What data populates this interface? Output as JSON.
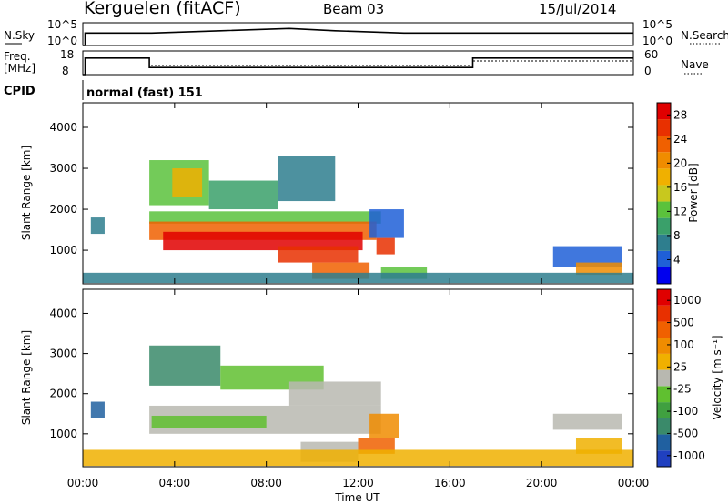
{
  "header": {
    "station": "Kerguelen (fitACF)",
    "beam": "Beam 03",
    "date": "15/Jul/2014"
  },
  "noise_panel": {
    "left_label": "N.Sky",
    "right_label": "N.Search",
    "tick_top": "10^5",
    "tick_bottom": "10^0"
  },
  "freq_panel": {
    "left_label_1": "Freq.",
    "left_label_2": "[MHz]",
    "right_label": "Nave",
    "left_ticks": [
      "18",
      "8"
    ],
    "right_ticks": [
      "60",
      "0"
    ]
  },
  "cpid_panel": {
    "label": "CPID",
    "mode": "normal (fast) 151"
  },
  "time_axis": {
    "label": "Time UT",
    "ticks": [
      "00:00",
      "04:00",
      "08:00",
      "12:00",
      "16:00",
      "20:00",
      "00:00"
    ]
  },
  "chart_data": [
    {
      "type": "heatmap",
      "name": "power",
      "ylabel": "Slant Range [km]",
      "ylim": [
        180,
        4600
      ],
      "yticks": [
        "1000",
        "2000",
        "3000",
        "4000"
      ],
      "xlim": [
        0,
        24
      ],
      "colorbar": {
        "label": "Power [dB]",
        "ticks": [
          "4",
          "8",
          "12",
          "16",
          "20",
          "24",
          "28"
        ],
        "range": [
          0,
          30
        ],
        "colors": [
          "#0000ee",
          "#1f5fd7",
          "#2e7e8e",
          "#3aa06a",
          "#5bc23c",
          "#c8c81e",
          "#f0b000",
          "#f08c00",
          "#f06000",
          "#e83000",
          "#e00000"
        ]
      },
      "regions": [
        {
          "t0": 0.35,
          "t1": 0.95,
          "r0": 1400,
          "r1": 1800,
          "color": "#2e7e8e"
        },
        {
          "t0": 2.9,
          "t1": 5.5,
          "r0": 2100,
          "r1": 3200,
          "color": "#5bc23c"
        },
        {
          "t0": 3.9,
          "t1": 5.2,
          "r0": 2300,
          "r1": 3000,
          "color": "#f0b000"
        },
        {
          "t0": 5.5,
          "t1": 8.5,
          "r0": 2000,
          "r1": 2700,
          "color": "#3aa06a"
        },
        {
          "t0": 8.5,
          "t1": 11,
          "r0": 2200,
          "r1": 3300,
          "color": "#2e7e8e"
        },
        {
          "t0": 2.9,
          "t1": 13.0,
          "r0": 1650,
          "r1": 1950,
          "color": "#5bc23c"
        },
        {
          "t0": 2.9,
          "t1": 12.8,
          "r0": 1250,
          "r1": 1700,
          "color": "#f06000"
        },
        {
          "t0": 3.5,
          "t1": 12.2,
          "r0": 1000,
          "r1": 1450,
          "color": "#e00000"
        },
        {
          "t0": 8.5,
          "t1": 12.0,
          "r0": 700,
          "r1": 1100,
          "color": "#e83000"
        },
        {
          "t0": 10.0,
          "t1": 12.5,
          "r0": 300,
          "r1": 700,
          "color": "#f06000"
        },
        {
          "t0": 12.8,
          "t1": 13.6,
          "r0": 900,
          "r1": 1300,
          "color": "#e83000"
        },
        {
          "t0": 12.5,
          "t1": 14.0,
          "r0": 1300,
          "r1": 2000,
          "color": "#1f5fd7"
        },
        {
          "t0": 13.0,
          "t1": 15.0,
          "r0": 300,
          "r1": 600,
          "color": "#5bc23c"
        },
        {
          "t0": 20.5,
          "t1": 23.5,
          "r0": 600,
          "r1": 1100,
          "color": "#1f5fd7"
        },
        {
          "t0": 21.5,
          "t1": 23.5,
          "r0": 400,
          "r1": 700,
          "color": "#f08c00"
        },
        {
          "t0": 0,
          "t1": 24,
          "r0": 200,
          "r1": 450,
          "color": "#2e7e8e"
        }
      ]
    },
    {
      "type": "heatmap",
      "name": "velocity",
      "ylabel": "Slant Range [km]",
      "ylim": [
        180,
        4600
      ],
      "yticks": [
        "1000",
        "2000",
        "3000",
        "4000"
      ],
      "xlim": [
        0,
        24
      ],
      "colorbar": {
        "label": "Velocity [m s⁻¹]",
        "ticks": [
          "1000",
          "500",
          "100",
          "25",
          "-25",
          "-100",
          "-500",
          "-1000"
        ],
        "colors": [
          "#2040c0",
          "#2060a0",
          "#3a8a6a",
          "#40a040",
          "#60c030",
          "#b8b8b0",
          "#f0b000",
          "#f08c00",
          "#f06000",
          "#e83000",
          "#e00000"
        ]
      },
      "regions": [
        {
          "t0": 0.35,
          "t1": 0.95,
          "r0": 1400,
          "r1": 1800,
          "color": "#2060a0"
        },
        {
          "t0": 2.9,
          "t1": 6.0,
          "r0": 2200,
          "r1": 3200,
          "color": "#3a8a6a"
        },
        {
          "t0": 6.0,
          "t1": 10.5,
          "r0": 2100,
          "r1": 2700,
          "color": "#60c030"
        },
        {
          "t0": 9.0,
          "t1": 13.0,
          "r0": 1700,
          "r1": 2300,
          "color": "#b8b8b0"
        },
        {
          "t0": 2.9,
          "t1": 13.0,
          "r0": 1000,
          "r1": 1700,
          "color": "#b8b8b0"
        },
        {
          "t0": 3.0,
          "t1": 8.0,
          "r0": 1150,
          "r1": 1450,
          "color": "#60c030"
        },
        {
          "t0": 12.5,
          "t1": 13.8,
          "r0": 900,
          "r1": 1500,
          "color": "#f08c00"
        },
        {
          "t0": 12.0,
          "t1": 13.6,
          "r0": 500,
          "r1": 900,
          "color": "#f06000"
        },
        {
          "t0": 9.5,
          "t1": 12.0,
          "r0": 300,
          "r1": 800,
          "color": "#b8b8b0"
        },
        {
          "t0": 20.5,
          "t1": 23.5,
          "r0": 1100,
          "r1": 1500,
          "color": "#b8b8b0"
        },
        {
          "t0": 21.5,
          "t1": 23.5,
          "r0": 500,
          "r1": 900,
          "color": "#f0b000"
        },
        {
          "t0": 0,
          "t1": 24,
          "r0": 200,
          "r1": 600,
          "color": "#f0b000"
        }
      ]
    },
    {
      "type": "line",
      "name": "noise_sky",
      "x": [
        0,
        0.1,
        0.1,
        3,
        6,
        9,
        11,
        14,
        18,
        24
      ],
      "y": [
        0,
        0,
        0.55,
        0.55,
        0.65,
        0.75,
        0.65,
        0.55,
        0.55,
        0.55
      ],
      "ylim": [
        0,
        1
      ]
    },
    {
      "type": "line",
      "name": "frequency",
      "x": [
        0,
        0.1,
        0.1,
        2.9,
        2.9,
        17.0,
        17.0,
        24
      ],
      "y": [
        0,
        0,
        0.7,
        0.7,
        0.3,
        0.3,
        0.7,
        0.7
      ],
      "ylim": [
        0,
        1
      ]
    }
  ]
}
